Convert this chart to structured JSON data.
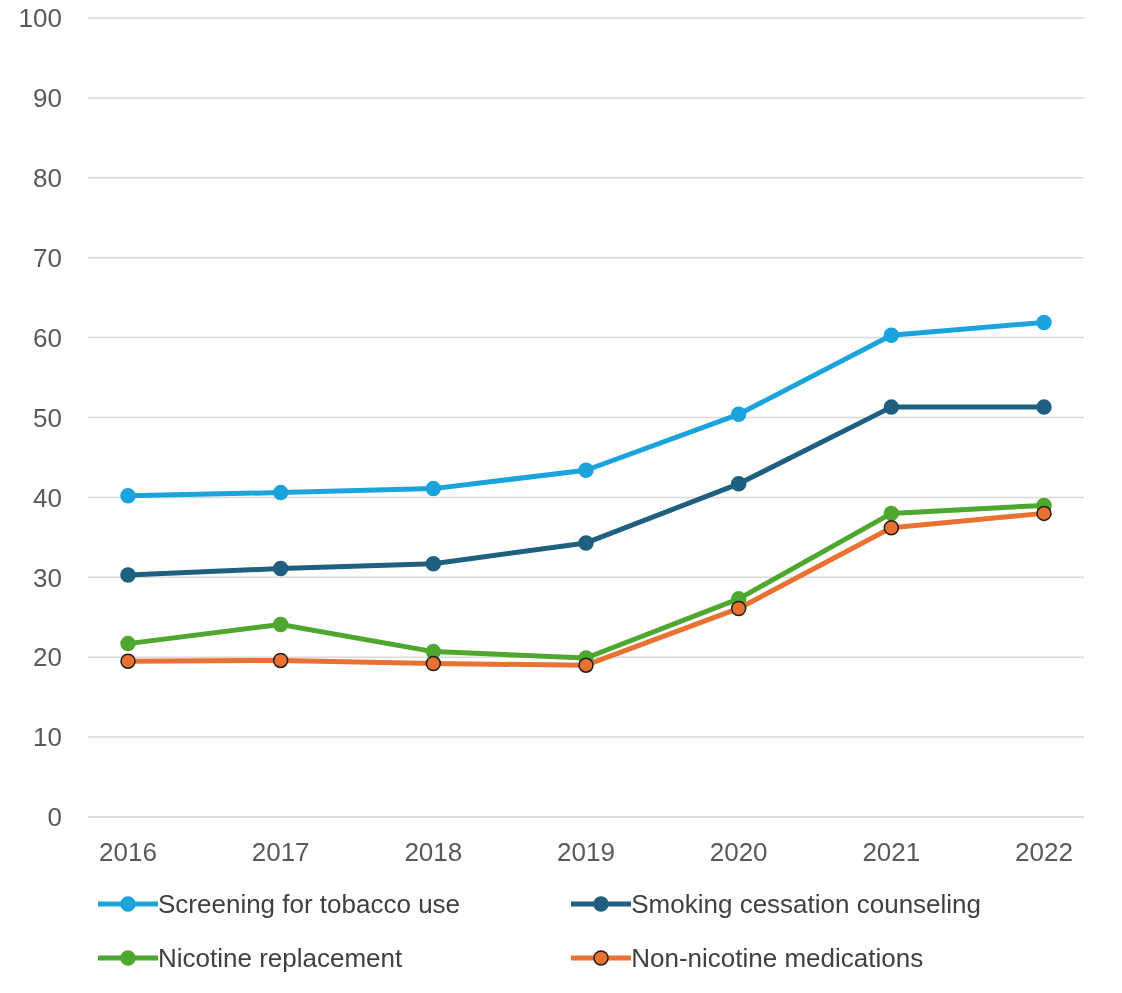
{
  "chart_data": {
    "type": "line",
    "categories": [
      "2016",
      "2017",
      "2018",
      "2019",
      "2020",
      "2021",
      "2022"
    ],
    "series": [
      {
        "name": "Screening for tobacco use",
        "color": "#1aa3dc",
        "values": [
          40.2,
          40.6,
          41.1,
          43.4,
          50.4,
          60.3,
          61.9
        ]
      },
      {
        "name": "Smoking cessation counseling",
        "color": "#1f5f7f",
        "values": [
          30.3,
          31.1,
          31.7,
          34.3,
          41.7,
          51.3,
          51.3
        ]
      },
      {
        "name": "Nicotine replacement",
        "color": "#4ea72e",
        "values": [
          21.7,
          24.1,
          20.7,
          19.9,
          27.3,
          38.0,
          39.0
        ]
      },
      {
        "name": "Non-nicotine medications",
        "color": "#e97132",
        "values": [
          19.5,
          19.6,
          19.2,
          19.0,
          26.1,
          36.2,
          38.0
        ]
      }
    ],
    "ylim": [
      0,
      100
    ],
    "yticks": [
      0,
      10,
      20,
      30,
      40,
      50,
      60,
      70,
      80,
      90,
      100
    ],
    "grid": "y",
    "legend": "bottom",
    "marker": "circle",
    "line_style": "solid"
  }
}
